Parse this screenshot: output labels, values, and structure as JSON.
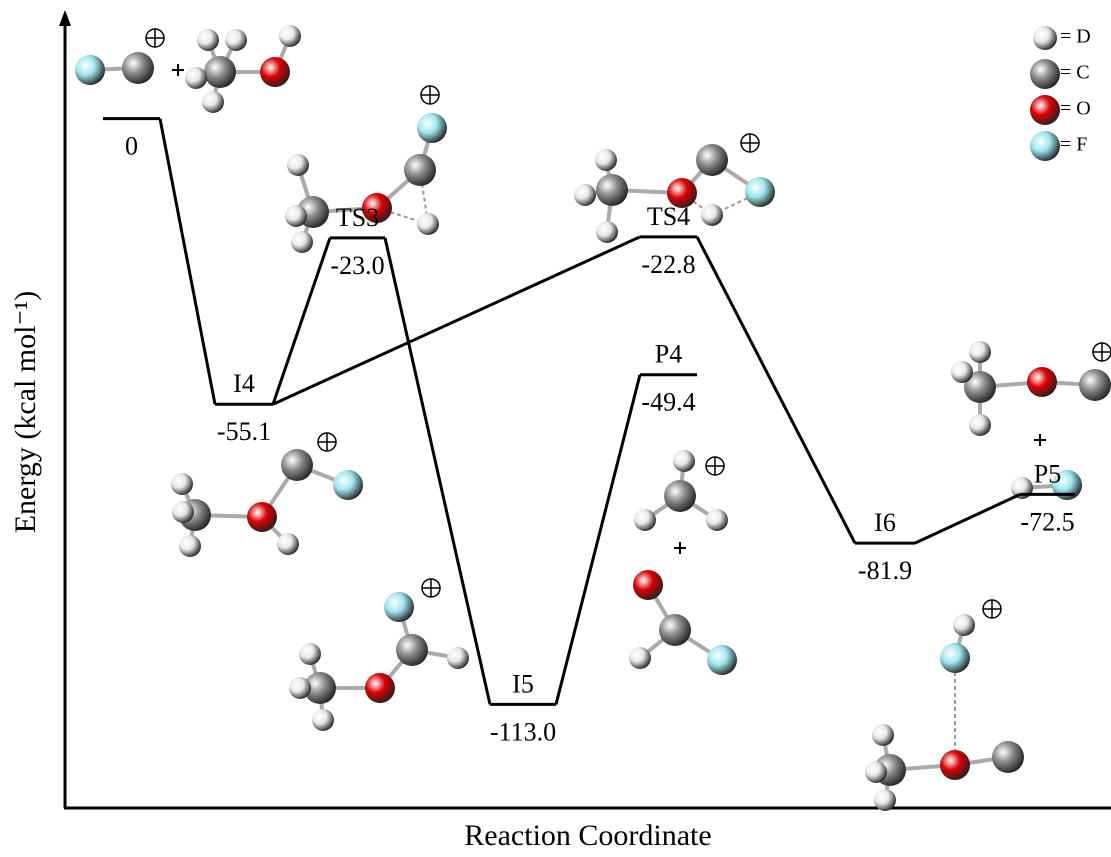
{
  "chart_data": {
    "type": "energy-diagram",
    "categories": [
      null,
      "I4",
      "TS3",
      "I5",
      "TS4",
      "P4",
      "I6",
      "P5"
    ],
    "values": [
      0,
      -55.1,
      -23.0,
      -113.0,
      -22.8,
      -49.4,
      -81.9,
      -72.5
    ],
    "value_labels": [
      "0",
      "-55.1",
      "-23.0",
      "-113.0",
      "-22.8",
      "-49.4",
      "-81.9",
      "-72.5"
    ],
    "ylim": [
      -133,
      20
    ],
    "xlabel": "Reaction Coordinate",
    "ylabel": "Energy (kcal mol⁻¹)",
    "color": "#000000",
    "legend": [
      {
        "name": "= D",
        "color": "#e8e8e8"
      },
      {
        "name": "= C",
        "color": "#8a8a8a"
      },
      {
        "name": "= O",
        "color": "#e00000"
      },
      {
        "name": "= F",
        "color": "#9ee6f0"
      }
    ]
  }
}
